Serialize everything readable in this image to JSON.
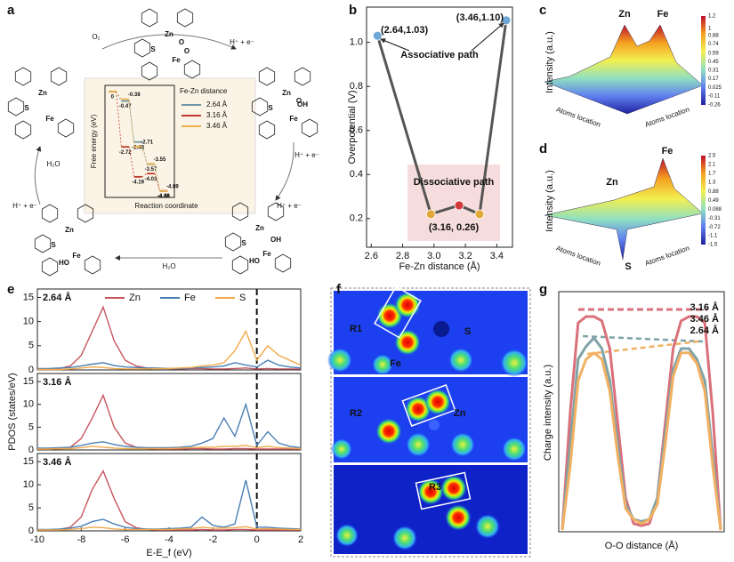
{
  "panel_labels": [
    "a",
    "b",
    "c",
    "d",
    "e",
    "f",
    "g"
  ],
  "panel_a": {
    "reaction_labels": [
      "O₂",
      "H⁺ + e⁻",
      "H⁺ + e⁻",
      "H⁺ + e⁻",
      "H₂O",
      "H⁺ + e⁻",
      "H₂O"
    ],
    "structures": [
      {
        "atoms": [
          "Zn",
          "S",
          "O",
          "O",
          "Fe"
        ]
      },
      {
        "atoms": [
          "Zn",
          "S",
          "OH",
          "O",
          "Fe"
        ]
      },
      {
        "atoms": [
          "Zn",
          "S",
          "OH",
          "HO",
          "Fe"
        ]
      },
      {
        "atoms": [
          "Zn",
          "S",
          "HO",
          "Fe"
        ]
      },
      {
        "atoms": [
          "Zn",
          "S",
          "Fe"
        ]
      }
    ]
  },
  "panel_c": {
    "labels": [
      "Zn",
      "Fe"
    ],
    "ylabel": "Intensity (a.u.)",
    "xlabels": [
      "Atoms location",
      "Atoms location"
    ],
    "colorbar_ticks": [
      1.2,
      1,
      0.88,
      0.74,
      0.59,
      0.45,
      0.31,
      0.17,
      0.025,
      -0.11,
      -0.26
    ]
  },
  "panel_d": {
    "labels": [
      "Zn",
      "Fe",
      "S"
    ],
    "ylabel": "Intensity (a.u.)",
    "xlabels": [
      "Atoms location",
      "Atoms location"
    ],
    "colorbar_ticks": [
      2.5,
      2.1,
      1.7,
      1.3,
      0.88,
      0.49,
      0.088,
      -0.31,
      -0.72,
      -1.1,
      -1.5
    ]
  },
  "panel_f": {
    "regions": [
      "R1",
      "R2",
      "R3"
    ],
    "atoms": [
      "S",
      "Fe",
      "Zn"
    ]
  },
  "chart_data": [
    {
      "type": "scatter-line",
      "xlabel": "Fe-Zn distance (Å)",
      "ylabel": "Overpotential (V)",
      "xlim": [
        2.57,
        3.5
      ],
      "ylim": [
        0.07,
        1.16
      ],
      "xticks": [
        2.6,
        2.8,
        {
          "value": 3,
          "label": "3.0"
        },
        3.2,
        3.4
      ],
      "yticks": [
        0.2,
        0.4,
        0.6,
        0.8,
        {
          "value": 1,
          "label": "1.0"
        }
      ],
      "line_color": "#555555",
      "series": [
        {
          "x": [
            2.64,
            2.98,
            3.16,
            3.29,
            3.46
          ],
          "values": [
            1.03,
            0.22,
            0.26,
            0.22,
            1.1
          ],
          "colors": [
            "#6fa8d6",
            "#e0a93a",
            "#d23a3a",
            "#e0a93a",
            "#6fa8d6"
          ]
        }
      ],
      "annotations": [
        "(2.64,1.03)",
        "(3.46,1.10)",
        "Associative path",
        "Dissociative path",
        "(3.16, 0.26)"
      ]
    },
    {
      "type": "line",
      "title": "2.64 Å",
      "xlim": [
        -10,
        2
      ],
      "ylim": [
        0,
        16
      ],
      "yticks": [
        0,
        5,
        10,
        15
      ],
      "vline": 0,
      "x": [
        -10,
        -9.5,
        -9,
        -8.5,
        -8,
        -7.5,
        -7,
        -6.5,
        -6,
        -5.5,
        -5,
        -4.5,
        -4,
        -3.5,
        -3,
        -2.5,
        -2,
        -1.5,
        -1,
        -0.5,
        0,
        0.5,
        1,
        1.5,
        2
      ],
      "series": [
        {
          "name": "Zn",
          "color": "#c8555e",
          "values": [
            0.2,
            0.2,
            0.3,
            0.8,
            3,
            8,
            13,
            6,
            2,
            0.8,
            0.4,
            0.3,
            0.3,
            0.2,
            0.3,
            0.3,
            0.2,
            0.2,
            0.3,
            0.4,
            0.2,
            0.3,
            0.2,
            0.2,
            0.2
          ]
        },
        {
          "name": "Fe",
          "color": "#4a7fb5",
          "values": [
            0.3,
            0.3,
            0.4,
            0.5,
            0.8,
            1.2,
            1.5,
            0.9,
            0.6,
            0.5,
            0.4,
            0.4,
            0.3,
            0.3,
            0.4,
            0.5,
            0.6,
            0.8,
            1.5,
            1,
            0.6,
            2,
            1,
            0.6,
            0.4
          ]
        },
        {
          "name": "S",
          "color": "#f0a94a",
          "values": [
            0.1,
            0.1,
            0.1,
            0.2,
            0.4,
            0.6,
            0.5,
            0.3,
            0.2,
            0.2,
            0.2,
            0.3,
            0.3,
            0.4,
            0.5,
            0.8,
            1,
            1.5,
            4,
            8,
            2,
            5,
            3,
            2,
            1
          ]
        }
      ]
    },
    {
      "type": "line",
      "title": "3.16 Å",
      "ylabel": "PDOS (states/eV)",
      "xlim": [
        -10,
        2
      ],
      "ylim": [
        0,
        16
      ],
      "yticks": [
        0,
        5,
        10,
        15
      ],
      "vline": 0,
      "x": [
        -10,
        -9.5,
        -9,
        -8.5,
        -8,
        -7.5,
        -7,
        -6.5,
        -6,
        -5.5,
        -5,
        -4.5,
        -4,
        -3.5,
        -3,
        -2.5,
        -2,
        -1.5,
        -1,
        -0.5,
        0,
        0.5,
        1,
        1.5,
        2
      ],
      "series": [
        {
          "color": "#c8555e",
          "values": [
            0.2,
            0.2,
            0.3,
            0.6,
            2.5,
            7,
            12,
            5,
            1.5,
            0.6,
            0.3,
            0.2,
            0.2,
            0.2,
            0.3,
            0.3,
            0.2,
            0.2,
            0.3,
            0.3,
            0.2,
            0.2,
            0.2,
            0.2,
            0.2
          ]
        },
        {
          "color": "#4a7fb5",
          "values": [
            0.4,
            0.4,
            0.5,
            0.6,
            1,
            1.5,
            1.8,
            1.2,
            0.8,
            0.6,
            0.5,
            0.5,
            0.5,
            0.6,
            0.8,
            1.5,
            2.5,
            7,
            3,
            10,
            1,
            4,
            1.5,
            0.8,
            0.5
          ]
        },
        {
          "color": "#f0a94a",
          "values": [
            0.2,
            0.2,
            0.3,
            0.3,
            0.5,
            0.8,
            0.6,
            0.4,
            0.3,
            0.3,
            0.3,
            0.3,
            0.3,
            0.4,
            0.5,
            0.6,
            0.6,
            0.8,
            0.8,
            1,
            0.5,
            0.8,
            0.5,
            0.4,
            0.3
          ]
        }
      ]
    },
    {
      "type": "line",
      "title": "3.46 Å",
      "xlabel": "E-E_f (eV)",
      "xlim": [
        -10,
        2
      ],
      "ylim": [
        0,
        16
      ],
      "yticks": [
        0,
        5,
        10,
        15
      ],
      "xticks": [
        -10,
        -8,
        -6,
        -4,
        -2,
        0,
        2
      ],
      "vline": 0,
      "x": [
        -10,
        -9.5,
        -9,
        -8.5,
        -8,
        -7.5,
        -7,
        -6.5,
        -6,
        -5.5,
        -5,
        -4.5,
        -4,
        -3.5,
        -3,
        -2.5,
        -2,
        -1.5,
        -1,
        -0.5,
        0,
        0.5,
        1,
        1.5,
        2
      ],
      "series": [
        {
          "color": "#c8555e",
          "values": [
            0.2,
            0.2,
            0.3,
            0.8,
            3,
            9,
            13,
            7,
            2,
            0.7,
            0.3,
            0.2,
            0.2,
            0.2,
            0.2,
            0.3,
            0.2,
            0.2,
            0.3,
            0.3,
            0.2,
            0.2,
            0.2,
            0.2,
            0.2
          ]
        },
        {
          "color": "#4a7fb5",
          "values": [
            0.3,
            0.3,
            0.4,
            0.6,
            1,
            2,
            2.5,
            1.5,
            0.8,
            0.5,
            0.4,
            0.4,
            0.5,
            0.6,
            0.8,
            3,
            1.2,
            0.8,
            1.5,
            11,
            0.8,
            0.8,
            0.6,
            0.5,
            0.4
          ]
        },
        {
          "color": "#f0a94a",
          "values": [
            0.2,
            0.2,
            0.2,
            0.3,
            0.5,
            0.8,
            0.7,
            0.4,
            0.3,
            0.3,
            0.3,
            0.3,
            0.3,
            0.4,
            0.5,
            0.8,
            0.6,
            0.6,
            0.7,
            0.9,
            0.4,
            0.5,
            0.4,
            0.3,
            0.3
          ]
        }
      ]
    },
    {
      "type": "line",
      "xlabel": "O-O distance (Å)",
      "ylabel": "Charge intensity (a.u.)",
      "xlim": [
        0,
        20
      ],
      "ylim": [
        0,
        1.1
      ],
      "x": [
        0,
        1,
        2,
        3,
        4,
        5,
        6,
        7,
        8,
        9,
        10,
        11,
        12,
        13,
        14,
        15,
        16,
        17,
        18,
        19,
        20
      ],
      "series": [
        {
          "name": "3.16 Å",
          "color": "#d9707a",
          "values": [
            0,
            0.55,
            0.97,
            1,
            1,
            0.98,
            0.85,
            0.5,
            0.15,
            0.03,
            0.02,
            0.03,
            0.15,
            0.5,
            0.85,
            0.98,
            1,
            1,
            0.97,
            0.55,
            0
          ]
        },
        {
          "name": "3.46 Å",
          "color": "#7fa3a8",
          "values": [
            0,
            0.4,
            0.8,
            0.86,
            0.9,
            0.85,
            0.7,
            0.4,
            0.12,
            0.05,
            0.04,
            0.05,
            0.15,
            0.45,
            0.75,
            0.85,
            0.85,
            0.8,
            0.7,
            0.35,
            0
          ]
        },
        {
          "name": "2.64 Å",
          "color": "#f2b062",
          "values": [
            0,
            0.3,
            0.7,
            0.8,
            0.83,
            0.8,
            0.65,
            0.35,
            0.1,
            0.05,
            0.03,
            0.05,
            0.12,
            0.4,
            0.72,
            0.83,
            0.83,
            0.78,
            0.65,
            0.3,
            0
          ]
        }
      ]
    },
    {
      "type": "step",
      "xlabel": "Reaction coordinate",
      "ylabel": "Free energy (eV)",
      "legend_title": "Fe-Zn distance",
      "ylim": [
        -5.2,
        0.3
      ],
      "series": [
        {
          "name": "2.64 Å",
          "color": "#6f97a8",
          "values": [
            0,
            -0.47,
            -2.48,
            -3.57,
            -4.89
          ]
        },
        {
          "name": "3.16 Å",
          "color": "#c0392b",
          "values": [
            0,
            -2.72,
            -4.19,
            -4.03,
            -4.88
          ]
        },
        {
          "name": "3.46 Å",
          "color": "#eab04a",
          "values": [
            0,
            -0.38,
            -2.71,
            -3.55,
            -4.89
          ]
        }
      ]
    }
  ]
}
